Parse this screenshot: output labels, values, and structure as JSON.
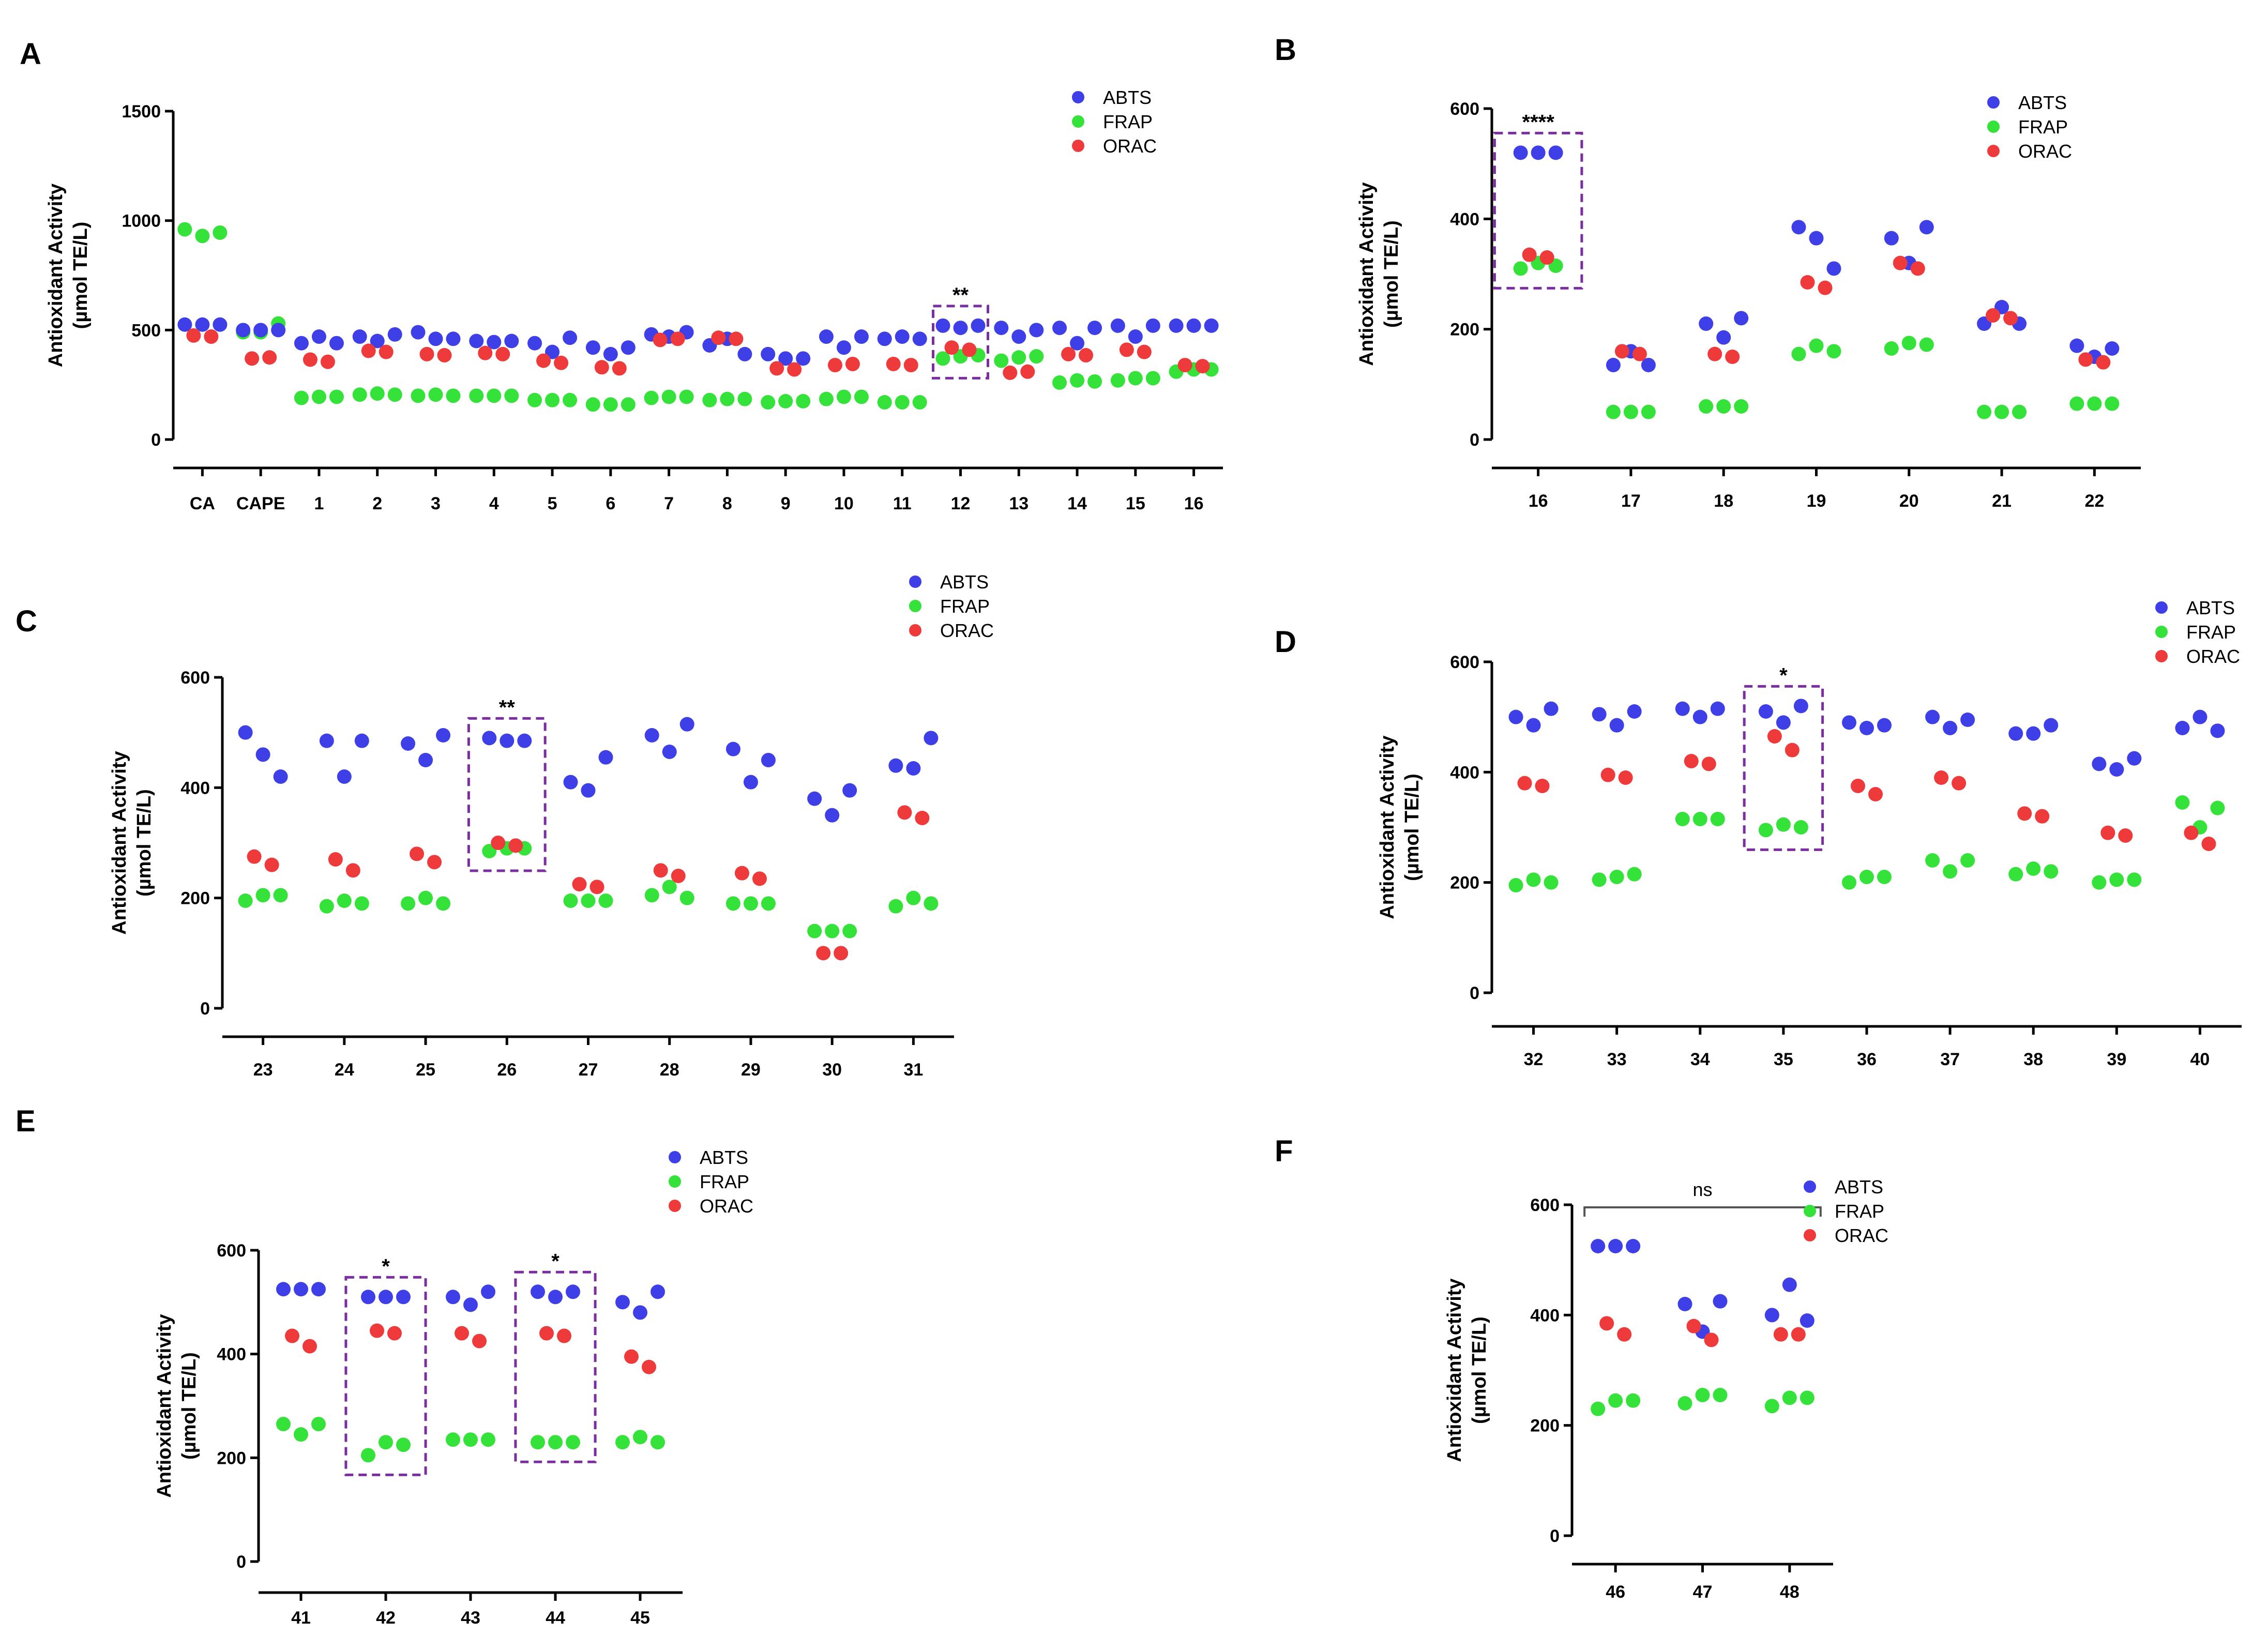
{
  "chart_data": [
    {
      "panel": "A",
      "type": "scatter",
      "ylabel": "Antioxidant Activity",
      "ylabel_unit": "(µmol TE/L)",
      "ylim": [
        0,
        1500
      ],
      "yticks": [
        0,
        500,
        1000,
        1500
      ],
      "categories": [
        "CA",
        "CAPE",
        "1",
        "2",
        "3",
        "4",
        "5",
        "6",
        "7",
        "8",
        "9",
        "10",
        "11",
        "12",
        "13",
        "14",
        "15",
        "16"
      ],
      "legend": [
        "ABTS",
        "FRAP",
        "ORAC"
      ],
      "series": [
        {
          "name": "ABTS",
          "color": "#3f3fe8",
          "values": [
            [
              525,
              525,
              525
            ],
            [
              500,
              500,
              500
            ],
            [
              440,
              470,
              440
            ],
            [
              470,
              450,
              480
            ],
            [
              490,
              460,
              460
            ],
            [
              450,
              445,
              450
            ],
            [
              440,
              400,
              465
            ],
            [
              420,
              390,
              420
            ],
            [
              480,
              470,
              490
            ],
            [
              430,
              460,
              390
            ],
            [
              390,
              370,
              370
            ],
            [
              470,
              420,
              470
            ],
            [
              460,
              470,
              460
            ],
            [
              520,
              510,
              520
            ],
            [
              510,
              470,
              500
            ],
            [
              510,
              440,
              510
            ],
            [
              520,
              470,
              520
            ],
            [
              520,
              520,
              520
            ]
          ]
        },
        {
          "name": "FRAP",
          "color": "#35e23a",
          "values": [
            [
              960,
              930,
              945
            ],
            [
              490,
              490,
              530
            ],
            [
              190,
              195,
              195
            ],
            [
              205,
              210,
              205
            ],
            [
              200,
              205,
              200
            ],
            [
              200,
              200,
              200
            ],
            [
              180,
              180,
              180
            ],
            [
              160,
              160,
              160
            ],
            [
              190,
              195,
              195
            ],
            [
              180,
              185,
              185
            ],
            [
              170,
              175,
              175
            ],
            [
              185,
              195,
              195
            ],
            [
              170,
              170,
              170
            ],
            [
              370,
              380,
              385
            ],
            [
              360,
              375,
              380
            ],
            [
              260,
              270,
              265
            ],
            [
              270,
              280,
              280
            ],
            [
              310,
              320,
              320
            ]
          ]
        },
        {
          "name": "ORAC",
          "color": "#ee3a3a",
          "values": [
            [
              475,
              470
            ],
            [
              370,
              375
            ],
            [
              365,
              355
            ],
            [
              405,
              400
            ],
            [
              390,
              385
            ],
            [
              395,
              390
            ],
            [
              360,
              350
            ],
            [
              330,
              325
            ],
            [
              455,
              460
            ],
            [
              465,
              460
            ],
            [
              325,
              320
            ],
            [
              340,
              345
            ],
            [
              345,
              340
            ],
            [
              420,
              410
            ],
            [
              305,
              310
            ],
            [
              390,
              385
            ],
            [
              410,
              400
            ],
            [
              340,
              335
            ]
          ]
        }
      ],
      "significance": [
        {
          "category": "12",
          "label": "**"
        }
      ]
    },
    {
      "panel": "B",
      "type": "scatter",
      "ylabel": "Antioxidant Activity",
      "ylabel_unit": "(µmol TE/L)",
      "ylim": [
        0,
        600
      ],
      "yticks": [
        0,
        200,
        400,
        600
      ],
      "categories": [
        "16",
        "17",
        "18",
        "19",
        "20",
        "21",
        "22"
      ],
      "legend": [
        "ABTS",
        "FRAP",
        "ORAC"
      ],
      "series": [
        {
          "name": "ABTS",
          "color": "#3f3fe8",
          "values": [
            [
              520,
              520,
              520
            ],
            [
              135,
              160,
              135
            ],
            [
              210,
              185,
              220
            ],
            [
              385,
              365,
              310
            ],
            [
              365,
              320,
              385
            ],
            [
              210,
              240,
              210
            ],
            [
              170,
              150,
              165
            ]
          ]
        },
        {
          "name": "FRAP",
          "color": "#35e23a",
          "values": [
            [
              310,
              320,
              315
            ],
            [
              50,
              50,
              50
            ],
            [
              60,
              60,
              60
            ],
            [
              155,
              170,
              160
            ],
            [
              165,
              175,
              172
            ],
            [
              50,
              50,
              50
            ],
            [
              65,
              65,
              65
            ]
          ]
        },
        {
          "name": "ORAC",
          "color": "#ee3a3a",
          "values": [
            [
              335,
              330
            ],
            [
              160,
              155
            ],
            [
              155,
              150
            ],
            [
              285,
              275
            ],
            [
              320,
              310
            ],
            [
              225,
              220
            ],
            [
              145,
              140
            ]
          ]
        }
      ],
      "significance": [
        {
          "category": "16",
          "label": "****"
        }
      ]
    },
    {
      "panel": "C",
      "type": "scatter",
      "ylabel": "Antioxidant Activity",
      "ylabel_unit": "(µmol TE/L)",
      "ylim": [
        0,
        600
      ],
      "yticks": [
        0,
        200,
        400,
        600
      ],
      "categories": [
        "23",
        "24",
        "25",
        "26",
        "27",
        "28",
        "29",
        "30",
        "31"
      ],
      "legend": [
        "ABTS",
        "FRAP",
        "ORAC"
      ],
      "series": [
        {
          "name": "ABTS",
          "color": "#3f3fe8",
          "values": [
            [
              500,
              460,
              420
            ],
            [
              485,
              420,
              485
            ],
            [
              480,
              450,
              495
            ],
            [
              490,
              485,
              485
            ],
            [
              410,
              395,
              455
            ],
            [
              495,
              465,
              515
            ],
            [
              470,
              410,
              450
            ],
            [
              380,
              350,
              395
            ],
            [
              440,
              435,
              490
            ]
          ]
        },
        {
          "name": "FRAP",
          "color": "#35e23a",
          "values": [
            [
              195,
              205,
              205
            ],
            [
              185,
              195,
              190
            ],
            [
              190,
              200,
              190
            ],
            [
              285,
              290,
              290
            ],
            [
              195,
              195,
              195
            ],
            [
              205,
              220,
              200
            ],
            [
              190,
              190,
              190
            ],
            [
              140,
              140,
              140
            ],
            [
              185,
              200,
              190
            ]
          ]
        },
        {
          "name": "ORAC",
          "color": "#ee3a3a",
          "values": [
            [
              275,
              260
            ],
            [
              270,
              250
            ],
            [
              280,
              265
            ],
            [
              300,
              295
            ],
            [
              225,
              220
            ],
            [
              250,
              240
            ],
            [
              245,
              235
            ],
            [
              100,
              100
            ],
            [
              355,
              345
            ]
          ]
        }
      ],
      "significance": [
        {
          "category": "26",
          "label": "**"
        }
      ]
    },
    {
      "panel": "D",
      "type": "scatter",
      "ylabel": "Antioxidant Activity",
      "ylabel_unit": "(µmol TE/L)",
      "ylim": [
        0,
        600
      ],
      "yticks": [
        0,
        200,
        400,
        600
      ],
      "categories": [
        "32",
        "33",
        "34",
        "35",
        "36",
        "37",
        "38",
        "39",
        "40"
      ],
      "legend": [
        "ABTS",
        "FRAP",
        "ORAC"
      ],
      "series": [
        {
          "name": "ABTS",
          "color": "#3f3fe8",
          "values": [
            [
              500,
              485,
              515
            ],
            [
              505,
              485,
              510
            ],
            [
              515,
              500,
              515
            ],
            [
              510,
              490,
              520
            ],
            [
              490,
              480,
              485
            ],
            [
              500,
              480,
              495
            ],
            [
              470,
              470,
              485
            ],
            [
              415,
              405,
              425
            ],
            [
              480,
              500,
              475
            ]
          ]
        },
        {
          "name": "FRAP",
          "color": "#35e23a",
          "values": [
            [
              195,
              205,
              200
            ],
            [
              205,
              210,
              215
            ],
            [
              315,
              315,
              315
            ],
            [
              295,
              305,
              300
            ],
            [
              200,
              210,
              210
            ],
            [
              240,
              220,
              240
            ],
            [
              215,
              225,
              220
            ],
            [
              200,
              205,
              205
            ],
            [
              345,
              300,
              335
            ]
          ]
        },
        {
          "name": "ORAC",
          "color": "#ee3a3a",
          "values": [
            [
              380,
              375
            ],
            [
              395,
              390
            ],
            [
              420,
              415
            ],
            [
              465,
              440
            ],
            [
              375,
              360
            ],
            [
              390,
              380
            ],
            [
              325,
              320
            ],
            [
              290,
              285
            ],
            [
              290,
              270
            ]
          ]
        }
      ],
      "significance": [
        {
          "category": "35",
          "label": "*"
        }
      ]
    },
    {
      "panel": "E",
      "type": "scatter",
      "ylabel": "Antioxidant Activity",
      "ylabel_unit": "(µmol TE/L)",
      "ylim": [
        0,
        600
      ],
      "yticks": [
        0,
        200,
        400,
        600
      ],
      "categories": [
        "41",
        "42",
        "43",
        "44",
        "45"
      ],
      "legend": [
        "ABTS",
        "FRAP",
        "ORAC"
      ],
      "series": [
        {
          "name": "ABTS",
          "color": "#3f3fe8",
          "values": [
            [
              525,
              525,
              525
            ],
            [
              510,
              510,
              510
            ],
            [
              510,
              495,
              520
            ],
            [
              520,
              510,
              520
            ],
            [
              500,
              480,
              520
            ]
          ]
        },
        {
          "name": "FRAP",
          "color": "#35e23a",
          "values": [
            [
              265,
              245,
              265
            ],
            [
              205,
              230,
              225
            ],
            [
              235,
              235,
              235
            ],
            [
              230,
              230,
              230
            ],
            [
              230,
              240,
              230
            ]
          ]
        },
        {
          "name": "ORAC",
          "color": "#ee3a3a",
          "values": [
            [
              435,
              415
            ],
            [
              445,
              440
            ],
            [
              440,
              425
            ],
            [
              440,
              435
            ],
            [
              395,
              375
            ]
          ]
        }
      ],
      "significance": [
        {
          "category": "42",
          "label": "*"
        },
        {
          "category": "44",
          "label": "*"
        }
      ]
    },
    {
      "panel": "F",
      "type": "scatter",
      "ylabel": "Antioxidant Activity",
      "ylabel_unit": "(µmol TE/L)",
      "ylim": [
        0,
        600
      ],
      "yticks": [
        0,
        200,
        400,
        600
      ],
      "categories": [
        "46",
        "47",
        "48"
      ],
      "legend": [
        "ABTS",
        "FRAP",
        "ORAC"
      ],
      "series": [
        {
          "name": "ABTS",
          "color": "#3f3fe8",
          "values": [
            [
              525,
              525,
              525
            ],
            [
              420,
              370,
              425
            ],
            [
              400,
              455,
              390
            ]
          ]
        },
        {
          "name": "FRAP",
          "color": "#35e23a",
          "values": [
            [
              230,
              245,
              245
            ],
            [
              240,
              255,
              255
            ],
            [
              235,
              250,
              250
            ]
          ]
        },
        {
          "name": "ORAC",
          "color": "#ee3a3a",
          "values": [
            [
              385,
              365
            ],
            [
              380,
              355
            ],
            [
              365,
              365
            ]
          ]
        }
      ],
      "bracket": {
        "from": "46",
        "to": "48",
        "label": "ns"
      }
    }
  ]
}
